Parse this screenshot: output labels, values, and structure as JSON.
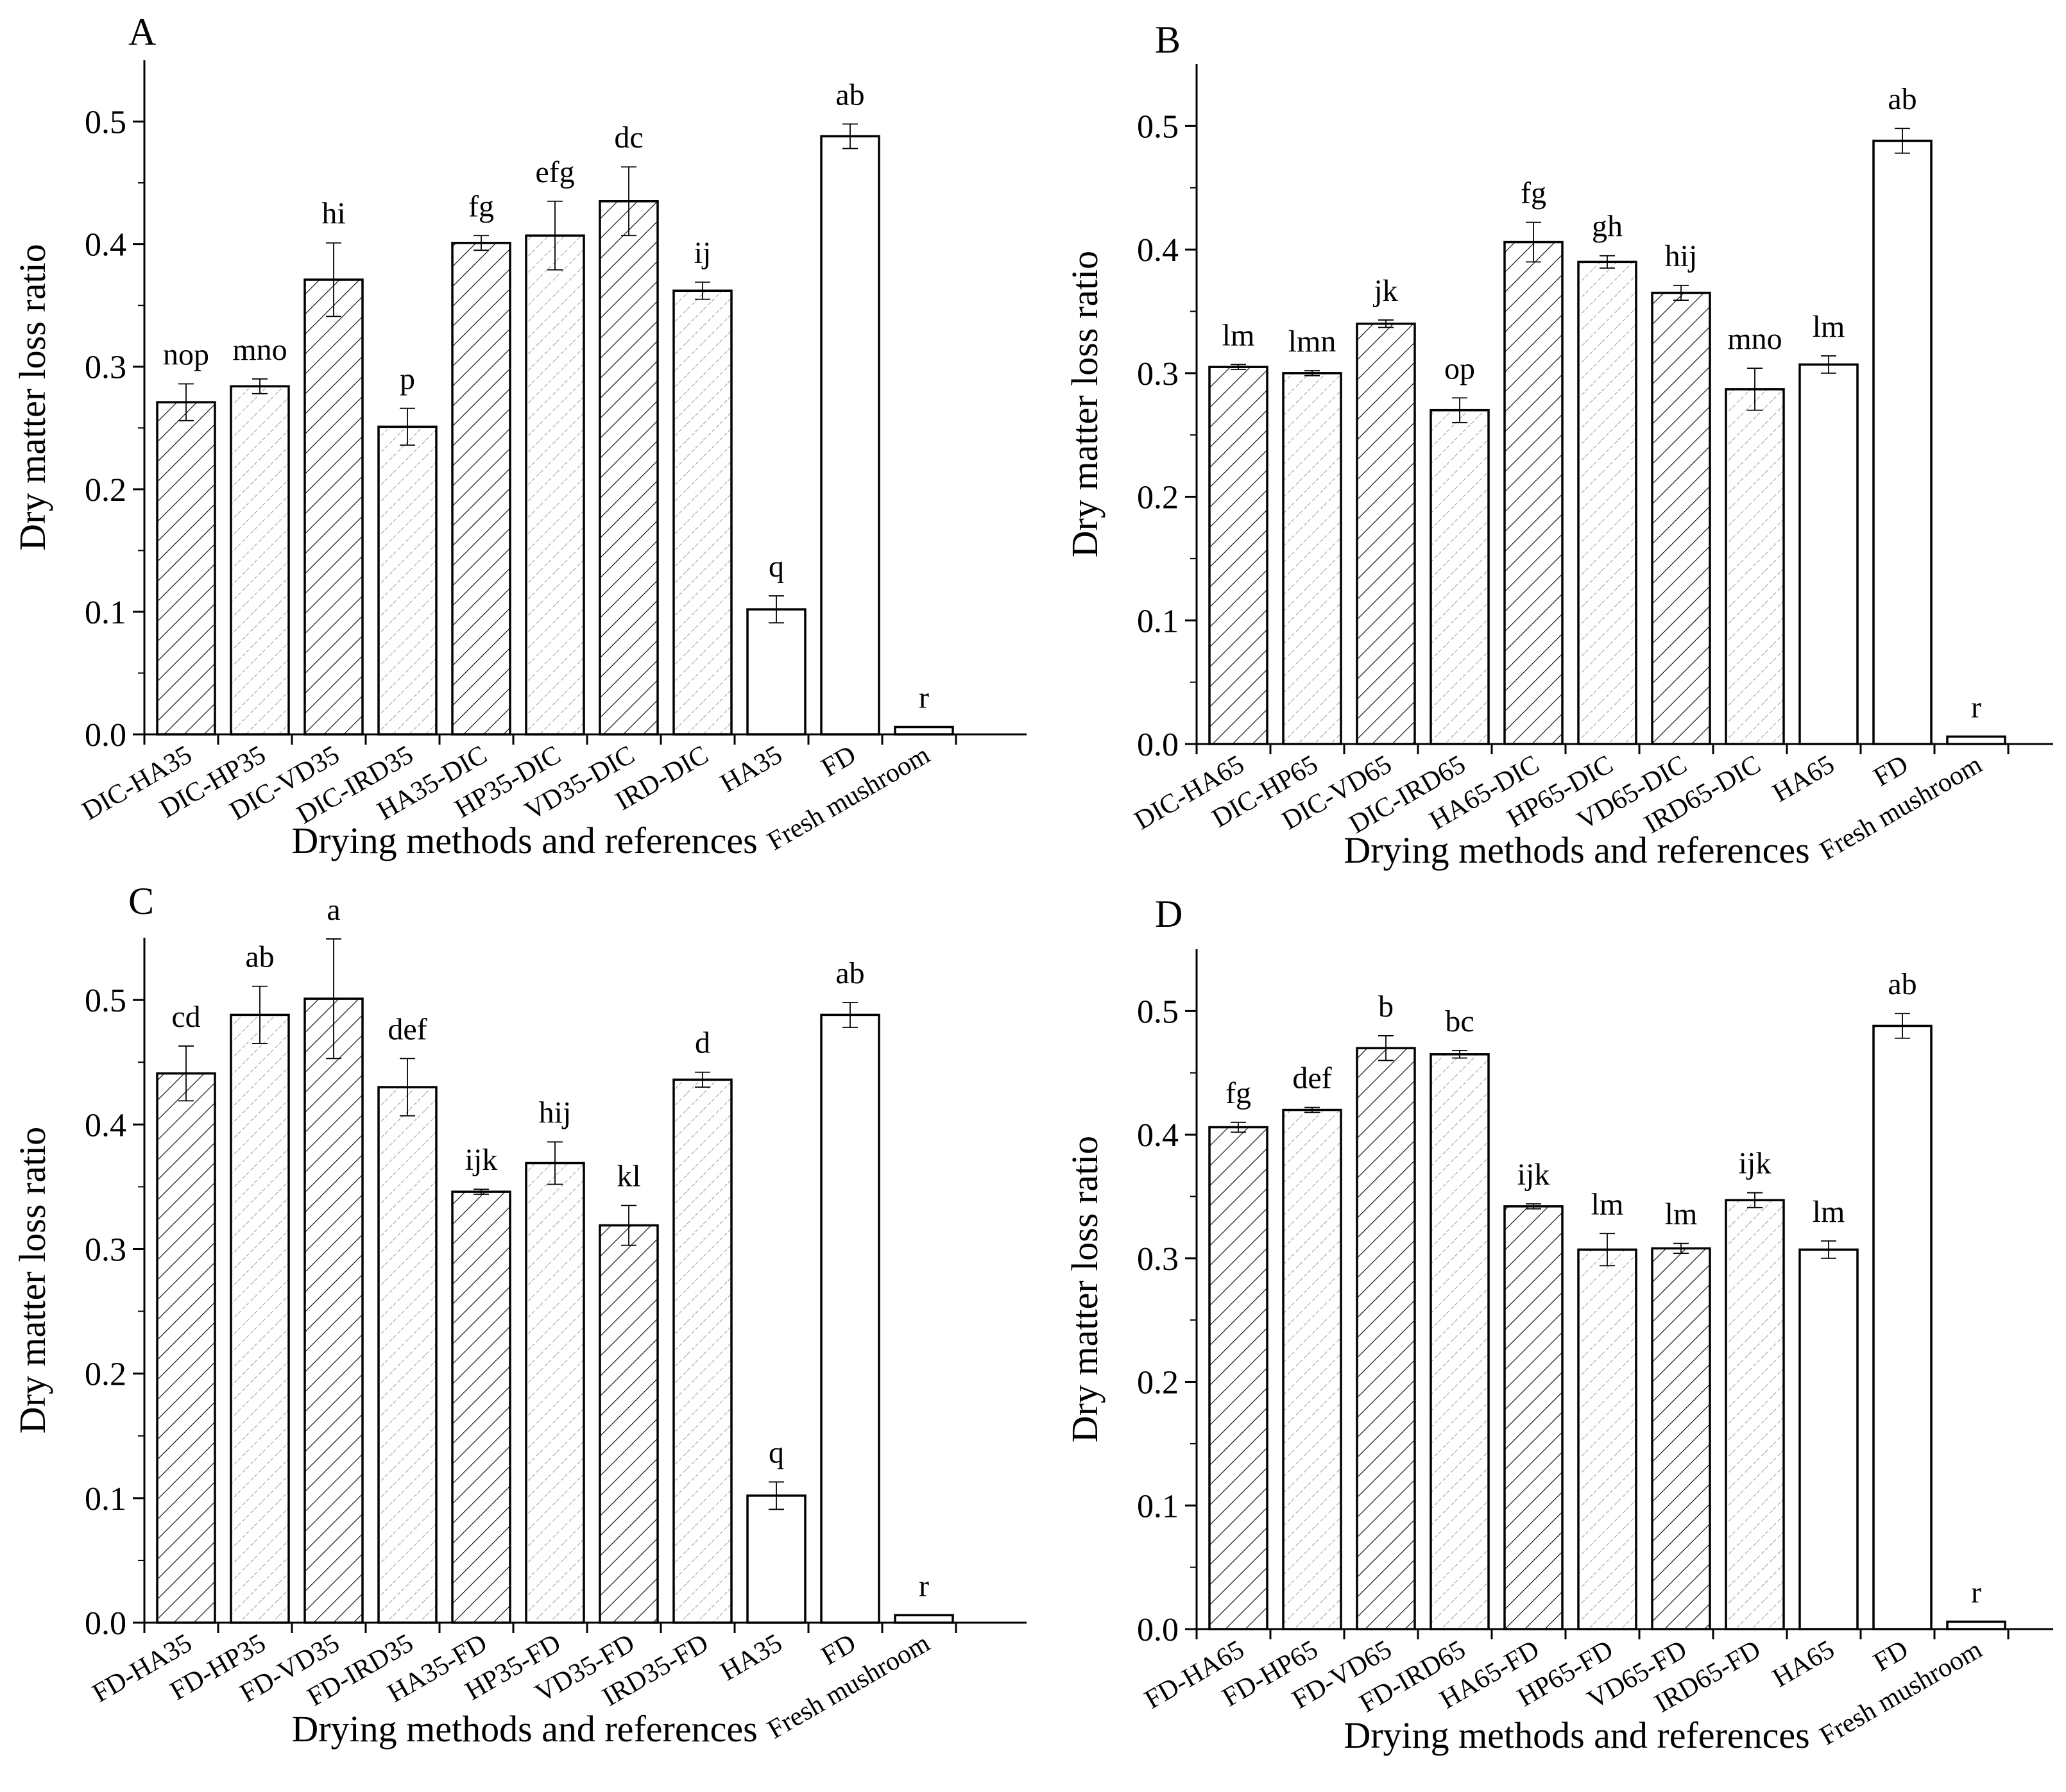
{
  "chart_data": [
    {
      "panel": "A",
      "type": "bar",
      "xlabel": "Drying methods and references",
      "ylabel": "Dry matter loss ratio",
      "ylim": [
        0,
        0.55
      ],
      "yticks": [
        "0.0",
        "0.1",
        "0.2",
        "0.3",
        "0.4",
        "0.5"
      ],
      "categories": [
        "DIC-HA35",
        "DIC-HP35",
        "DIC-VD35",
        "DIC-IRD35",
        "HA35-DIC",
        "HP35-DIC",
        "VD35-DIC",
        "IRD-DIC",
        "HA35",
        "FD",
        "Fresh mushroom"
      ],
      "values": [
        0.271,
        0.284,
        0.371,
        0.251,
        0.401,
        0.407,
        0.435,
        0.362,
        0.102,
        0.488,
        0.006
      ],
      "errors": [
        0.015,
        0.006,
        0.03,
        0.015,
        0.006,
        0.028,
        0.028,
        0.007,
        0.011,
        0.01,
        0.0
      ],
      "letters": [
        "nop",
        "mno",
        "hi",
        "p",
        "fg",
        "efg",
        "dc",
        "ij",
        "q",
        "ab",
        "r"
      ],
      "hatched": [
        true,
        true,
        true,
        true,
        true,
        true,
        true,
        true,
        false,
        false,
        false
      ]
    },
    {
      "panel": "B",
      "type": "bar",
      "xlabel": "Drying methods and references",
      "ylabel": "Dry matter loss ratio",
      "ylim": [
        0,
        0.55
      ],
      "yticks": [
        "0.0",
        "0.1",
        "0.2",
        "0.3",
        "0.4",
        "0.5"
      ],
      "categories": [
        "DIC-HA65",
        "DIC-HP65",
        "DIC-VD65",
        "DIC-IRD65",
        "HA65-DIC",
        "HP65-DIC",
        "VD65-DIC",
        "IRD65-DIC",
        "HA65",
        "FD",
        "Fresh mushroom"
      ],
      "values": [
        0.305,
        0.3,
        0.34,
        0.27,
        0.406,
        0.39,
        0.365,
        0.287,
        0.307,
        0.488,
        0.006
      ],
      "errors": [
        0.002,
        0.002,
        0.003,
        0.01,
        0.016,
        0.005,
        0.006,
        0.017,
        0.007,
        0.01,
        0.0
      ],
      "letters": [
        "lm",
        "lmn",
        "jk",
        "op",
        "fg",
        "gh",
        "hij",
        "mno",
        "lm",
        "ab",
        "r"
      ],
      "hatched": [
        true,
        true,
        true,
        true,
        true,
        true,
        true,
        true,
        false,
        false,
        false
      ]
    },
    {
      "panel": "C",
      "type": "bar",
      "xlabel": "Drying methods and references",
      "ylabel": "Dry matter loss ratio",
      "ylim": [
        0,
        0.55
      ],
      "yticks": [
        "0.0",
        "0.1",
        "0.2",
        "0.3",
        "0.4",
        "0.5"
      ],
      "categories": [
        "FD-HA35",
        "FD-HP35",
        "FD-VD35",
        "FD-IRD35",
        "HA35-FD",
        "HP35-FD",
        "VD35-FD",
        "IRD35-FD",
        "HA35",
        "FD",
        "Fresh mushroom"
      ],
      "values": [
        0.441,
        0.488,
        0.501,
        0.43,
        0.346,
        0.369,
        0.319,
        0.436,
        0.102,
        0.488,
        0.006
      ],
      "errors": [
        0.022,
        0.023,
        0.048,
        0.023,
        0.002,
        0.017,
        0.016,
        0.006,
        0.011,
        0.01,
        0.0
      ],
      "letters": [
        "cd",
        "ab",
        "a",
        "def",
        "ijk",
        "hij",
        "kl",
        "d",
        "q",
        "ab",
        "r"
      ],
      "hatched": [
        true,
        true,
        true,
        true,
        true,
        true,
        true,
        true,
        false,
        false,
        false
      ]
    },
    {
      "panel": "D",
      "type": "bar",
      "xlabel": "Drying methods and references",
      "ylabel": "Dry matter loss ratio",
      "ylim": [
        0,
        0.55
      ],
      "yticks": [
        "0.0",
        "0.1",
        "0.2",
        "0.3",
        "0.4",
        "0.5"
      ],
      "categories": [
        "FD-HA65",
        "FD-HP65",
        "FD-VD65",
        "FD-IRD65",
        "HA65-FD",
        "HP65-FD",
        "VD65-FD",
        "IRD65-FD",
        "HA65",
        "FD",
        "Fresh mushroom"
      ],
      "values": [
        0.406,
        0.42,
        0.47,
        0.465,
        0.342,
        0.307,
        0.308,
        0.347,
        0.307,
        0.488,
        0.006
      ],
      "errors": [
        0.004,
        0.002,
        0.01,
        0.003,
        0.002,
        0.013,
        0.004,
        0.006,
        0.007,
        0.01,
        0.0
      ],
      "letters": [
        "fg",
        "def",
        "b",
        "bc",
        "ijk",
        "lm",
        "lm",
        "ijk",
        "lm",
        "ab",
        "r"
      ],
      "hatched": [
        true,
        true,
        true,
        true,
        true,
        true,
        true,
        true,
        false,
        false,
        false
      ]
    }
  ]
}
